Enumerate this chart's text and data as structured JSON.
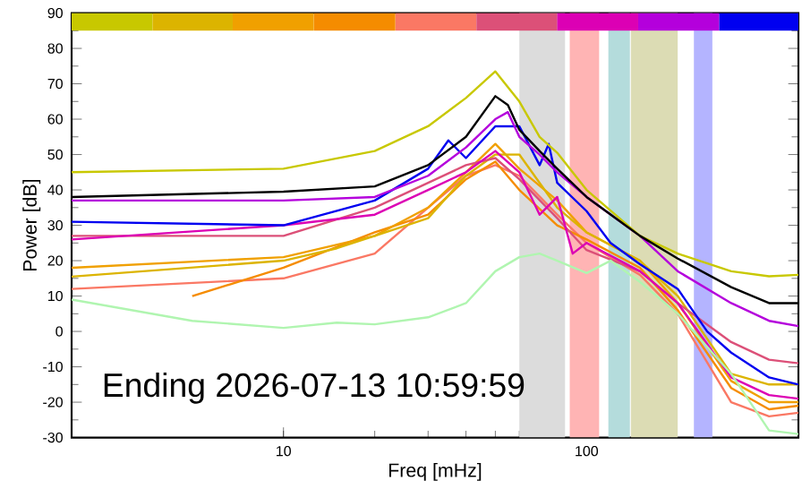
{
  "chart_data": {
    "type": "line",
    "xlabel": "Freq [mHz]",
    "ylabel": "Power [dB]",
    "log": "x",
    "xlim": [
      2,
      500
    ],
    "ylim": [
      -30,
      90
    ],
    "xticks": [
      10,
      100
    ],
    "yticks": [
      -30,
      -20,
      -10,
      0,
      10,
      20,
      30,
      40,
      50,
      60,
      70,
      80,
      90
    ],
    "annotations": [
      "Ending 2026-07-13 10:59:59"
    ],
    "bands": [
      {
        "axis": "x",
        "from": 60,
        "to": 85,
        "color": "#dcdcdc"
      },
      {
        "axis": "x",
        "from": 88,
        "to": 110,
        "color": "#ffb4b4"
      },
      {
        "axis": "x",
        "from": 118,
        "to": 139,
        "color": "#b4dcdc"
      },
      {
        "axis": "x",
        "from": 140,
        "to": 200,
        "color": "#dcdcb4"
      },
      {
        "axis": "x",
        "from": 226,
        "to": 260,
        "color": "#b4b4ff"
      }
    ],
    "series": [
      {
        "type": "histogram",
        "bins": [
          2,
          3.7,
          6.8,
          12.6,
          23.4,
          43.3,
          80,
          148,
          274,
          500
        ],
        "base": [
          85,
          85,
          85,
          85,
          85,
          85,
          85,
          85,
          85
        ],
        "values": [
          5,
          5,
          5,
          5,
          5,
          5,
          5,
          5,
          5
        ],
        "colors": [
          "#c8c800",
          "#dcb400",
          "#f0a000",
          "#f58c00",
          "#fa7864",
          "#dc5078",
          "#dc00b4",
          "#b400dc",
          "#0000f0"
        ]
      },
      {
        "color": "#fa7864",
        "x": [
          2,
          10,
          20,
          30,
          40,
          50,
          60,
          80,
          100,
          150,
          200,
          300,
          400,
          500
        ],
        "values": [
          12,
          15,
          22,
          35,
          44,
          47,
          44,
          33,
          25,
          16,
          5,
          -20,
          -24,
          -23
        ]
      },
      {
        "color": "#f58c00",
        "x": [
          5,
          10,
          20,
          30,
          40,
          50,
          60,
          80,
          100,
          150,
          200,
          300,
          400,
          500
        ],
        "values": [
          10,
          18,
          28,
          33,
          43,
          48,
          40,
          30,
          26,
          18,
          6,
          -16,
          -22,
          -21
        ]
      },
      {
        "color": "#f0a000",
        "x": [
          2,
          10,
          20,
          30,
          40,
          50,
          60,
          80,
          100,
          150,
          200,
          300,
          400,
          500
        ],
        "values": [
          18,
          21,
          27,
          35,
          45,
          53,
          46,
          37,
          28,
          20,
          8,
          -14,
          -20,
          -20
        ]
      },
      {
        "color": "#dcb400",
        "x": [
          2,
          10,
          15,
          20,
          30,
          40,
          50,
          60,
          80,
          100,
          150,
          200,
          300,
          400,
          500
        ],
        "values": [
          15.5,
          20,
          23.5,
          27,
          32,
          44,
          50,
          50,
          35,
          28,
          20,
          10,
          -12,
          -15,
          -15
        ]
      },
      {
        "color": "#dc5078",
        "x": [
          2,
          10,
          20,
          40,
          50,
          60,
          80,
          100,
          150,
          200,
          300,
          400,
          500
        ],
        "values": [
          27,
          27,
          35,
          47,
          49,
          43,
          32,
          23,
          17,
          8,
          -3,
          -8,
          -9
        ]
      },
      {
        "color": "#dc00b4",
        "x": [
          2,
          10,
          20,
          30,
          40,
          50,
          60,
          70,
          80,
          90,
          100,
          150,
          200,
          300,
          400,
          500
        ],
        "values": [
          26,
          30,
          33,
          40,
          45,
          51,
          45,
          33,
          38,
          22,
          25,
          17,
          8,
          -13,
          -18,
          -19
        ]
      },
      {
        "color": "#b0f5b0",
        "x": [
          2,
          5,
          10,
          15,
          20,
          30,
          40,
          50,
          60,
          70,
          80,
          100,
          120,
          150,
          200,
          300,
          400,
          500
        ],
        "values": [
          9,
          3,
          1,
          2.5,
          2,
          4,
          8,
          17,
          21,
          22,
          20,
          16.5,
          20,
          14,
          5,
          -12,
          -28,
          -29
        ]
      },
      {
        "color": "#0000f0",
        "x": [
          2,
          10,
          20,
          30,
          35,
          40,
          50,
          60,
          70,
          75,
          80,
          100,
          120,
          150,
          200,
          250,
          300,
          400,
          500
        ],
        "values": [
          31,
          30,
          37,
          46,
          54,
          49,
          58,
          58,
          47,
          53,
          42,
          34,
          25,
          19,
          12,
          0,
          -6,
          -13,
          -15
        ]
      },
      {
        "color": "#b400dc",
        "x": [
          2,
          10,
          20,
          30,
          40,
          50,
          55,
          60,
          70,
          80,
          100,
          150,
          200,
          300,
          400,
          500
        ],
        "values": [
          37,
          37,
          38,
          44,
          52,
          60,
          62,
          55,
          50,
          45,
          38,
          27,
          17,
          8,
          3,
          1.5
        ]
      },
      {
        "color": "#c8c800",
        "x": [
          2,
          10,
          20,
          30,
          40,
          50,
          60,
          70,
          80,
          100,
          150,
          200,
          300,
          400,
          500
        ],
        "values": [
          45,
          46,
          51,
          58,
          66,
          73.5,
          65,
          55,
          50.5,
          40,
          27,
          22,
          17,
          15.6,
          16
        ]
      },
      {
        "color": "#000000",
        "x": [
          2,
          10,
          20,
          30,
          40,
          50,
          55,
          60,
          70,
          80,
          100,
          150,
          200,
          300,
          400,
          500
        ],
        "values": [
          38,
          39.5,
          41,
          47,
          55,
          66.5,
          64,
          57,
          51,
          46,
          38,
          27,
          20.6,
          12.5,
          8,
          8
        ]
      }
    ]
  }
}
